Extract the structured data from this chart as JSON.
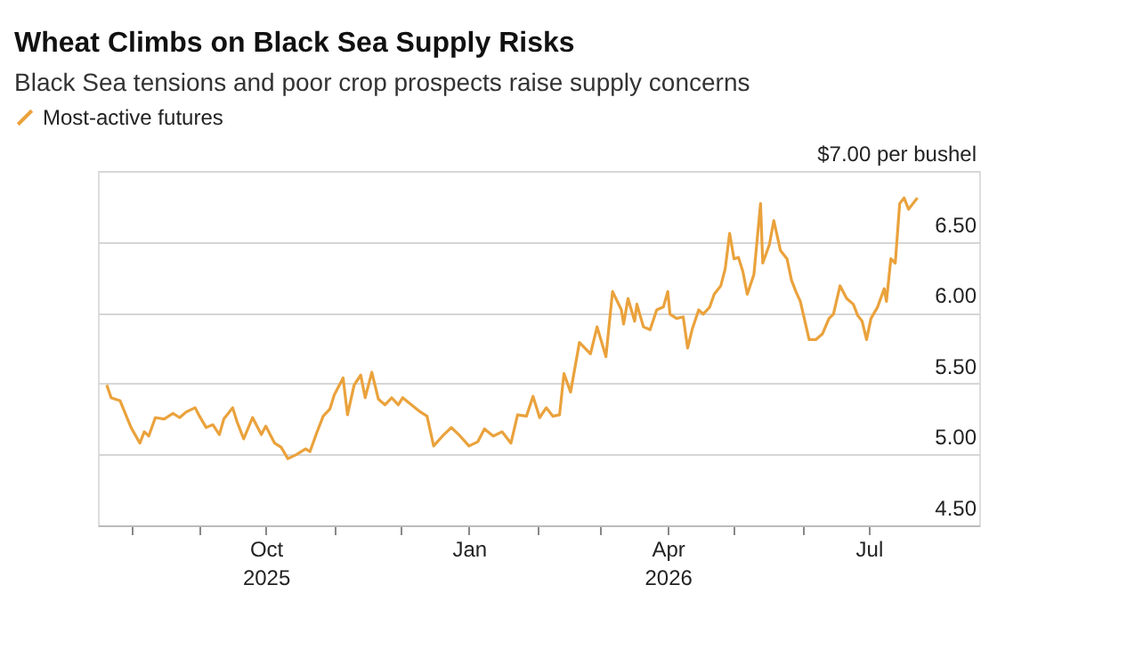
{
  "chart_data": {
    "type": "line",
    "title": "Wheat Climbs on Black Sea Supply Risks",
    "subtitle": "Black Sea tensions and poor crop prospects raise supply concerns",
    "x": [
      "2025-07-21",
      "2025-07-23",
      "2025-07-27",
      "2025-08-01",
      "2025-08-05",
      "2025-08-07",
      "2025-08-09",
      "2025-08-12",
      "2025-08-16",
      "2025-08-20",
      "2025-08-23",
      "2025-08-26",
      "2025-08-30",
      "2025-09-01",
      "2025-09-04",
      "2025-09-07",
      "2025-09-10",
      "2025-09-12",
      "2025-09-16",
      "2025-09-18",
      "2025-09-21",
      "2025-09-25",
      "2025-09-29",
      "2025-10-01",
      "2025-10-05",
      "2025-10-08",
      "2025-10-11",
      "2025-10-15",
      "2025-10-19",
      "2025-10-21",
      "2025-10-24",
      "2025-10-27",
      "2025-10-30",
      "2025-11-01",
      "2025-11-05",
      "2025-11-07",
      "2025-11-10",
      "2025-11-13",
      "2025-11-15",
      "2025-11-18",
      "2025-11-21",
      "2025-11-24",
      "2025-11-27",
      "2025-11-30",
      "2025-12-02",
      "2025-12-06",
      "2025-12-10",
      "2025-12-13",
      "2025-12-16",
      "2025-12-20",
      "2025-12-24",
      "2025-12-28",
      "2026-01-01",
      "2026-01-05",
      "2026-01-08",
      "2026-01-12",
      "2026-01-16",
      "2026-01-20",
      "2026-01-23",
      "2026-01-27",
      "2026-01-30",
      "2026-02-02",
      "2026-02-05",
      "2026-02-08",
      "2026-02-11",
      "2026-02-13",
      "2026-02-16",
      "2026-02-20",
      "2026-02-25",
      "2026-02-28",
      "2026-03-04",
      "2026-03-07",
      "2026-03-11",
      "2026-03-12",
      "2026-03-14",
      "2026-03-17",
      "2026-03-18",
      "2026-03-21",
      "2026-03-24",
      "2026-03-27",
      "2026-03-30",
      "2026-04-01",
      "2026-04-02",
      "2026-04-05",
      "2026-04-08",
      "2026-04-10",
      "2026-04-12",
      "2026-04-15",
      "2026-04-17",
      "2026-04-20",
      "2026-04-22",
      "2026-04-25",
      "2026-04-27",
      "2026-04-29",
      "2026-05-01",
      "2026-05-03",
      "2026-05-05",
      "2026-05-07",
      "2026-05-10",
      "2026-05-13",
      "2026-05-14",
      "2026-05-17",
      "2026-05-19",
      "2026-05-22",
      "2026-05-25",
      "2026-05-27",
      "2026-05-29",
      "2026-05-31",
      "2026-06-04",
      "2026-06-07",
      "2026-06-10",
      "2026-06-13",
      "2026-06-15",
      "2026-06-18",
      "2026-06-21",
      "2026-06-24",
      "2026-06-26",
      "2026-06-28",
      "2026-06-30",
      "2026-07-02",
      "2026-07-05",
      "2026-07-08",
      "2026-07-09",
      "2026-07-11",
      "2026-07-13",
      "2026-07-15",
      "2026-07-17",
      "2026-07-19",
      "2026-07-21",
      "2026-07-23"
    ],
    "series": [
      {
        "name": "Most-active futures",
        "color": "#eaa23c",
        "values": [
          5.49,
          5.4,
          5.38,
          5.19,
          5.08,
          5.16,
          5.13,
          5.26,
          5.25,
          5.29,
          5.26,
          5.3,
          5.33,
          5.27,
          5.19,
          5.21,
          5.14,
          5.25,
          5.33,
          5.23,
          5.11,
          5.26,
          5.14,
          5.2,
          5.08,
          5.05,
          4.97,
          5.0,
          5.04,
          5.02,
          5.15,
          5.27,
          5.32,
          5.42,
          5.54,
          5.28,
          5.49,
          5.56,
          5.4,
          5.58,
          5.39,
          5.35,
          5.4,
          5.35,
          5.4,
          5.35,
          5.3,
          5.27,
          5.06,
          5.13,
          5.19,
          5.13,
          5.06,
          5.09,
          5.18,
          5.13,
          5.16,
          5.08,
          5.28,
          5.27,
          5.41,
          5.26,
          5.33,
          5.27,
          5.28,
          5.57,
          5.44,
          5.79,
          5.71,
          5.9,
          5.69,
          6.15,
          6.02,
          5.92,
          6.1,
          5.94,
          6.06,
          5.9,
          5.88,
          6.02,
          6.04,
          6.15,
          5.99,
          5.96,
          5.97,
          5.75,
          5.88,
          6.02,
          5.99,
          6.04,
          6.13,
          6.19,
          6.31,
          6.56,
          6.38,
          6.39,
          6.29,
          6.13,
          6.27,
          6.77,
          6.35,
          6.48,
          6.65,
          6.44,
          6.38,
          6.23,
          6.15,
          6.08,
          5.81,
          5.81,
          5.85,
          5.96,
          5.99,
          6.19,
          6.1,
          6.06,
          5.98,
          5.94,
          5.81,
          5.96,
          6.04,
          6.17,
          6.08,
          6.38,
          6.35,
          6.77,
          6.81,
          6.73,
          6.77,
          6.81
        ]
      }
    ],
    "xlim": [
      "2025-07-17",
      "2026-08-20"
    ],
    "xticks": [
      {
        "value": "2025-08-01",
        "label": null
      },
      {
        "value": "2025-09-01",
        "label": null
      },
      {
        "value": "2025-10-01",
        "label": "Oct\n2025"
      },
      {
        "value": "2025-11-01",
        "label": null
      },
      {
        "value": "2025-12-01",
        "label": null
      },
      {
        "value": "2026-01-01",
        "label": "Jan"
      },
      {
        "value": "2026-02-01",
        "label": null
      },
      {
        "value": "2026-03-01",
        "label": null
      },
      {
        "value": "2026-04-01",
        "label": "Apr\n2026"
      },
      {
        "value": "2026-05-01",
        "label": null
      },
      {
        "value": "2026-06-01",
        "label": null
      },
      {
        "value": "2026-07-01",
        "label": "Jul"
      }
    ],
    "ylim": [
      4.5,
      7.0
    ],
    "yticks": [
      {
        "value": 4.5,
        "label": "4.50"
      },
      {
        "value": 5.0,
        "label": "5.00"
      },
      {
        "value": 5.5,
        "label": "5.50"
      },
      {
        "value": 6.0,
        "label": "6.00"
      },
      {
        "value": 6.5,
        "label": "6.50"
      },
      {
        "value": 7.0,
        "label": "$7.00 per bushel"
      }
    ],
    "grid": "y",
    "legend": "top left"
  }
}
